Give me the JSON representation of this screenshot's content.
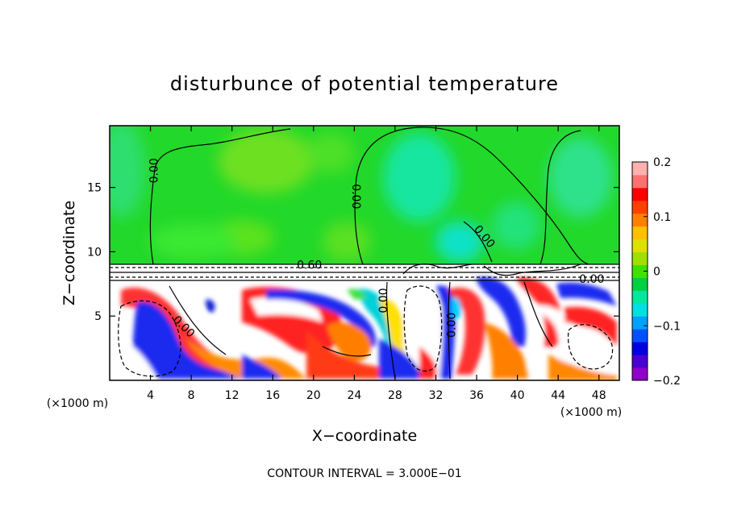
{
  "chart_data": {
    "type": "heatmap",
    "title": "disturbunce of potential temperature",
    "xlabel": "X−coordinate",
    "ylabel": "Z−coordinate",
    "x_unit": "(×1000 m)",
    "x_unit_right": "(×1000 m)",
    "xlim": [
      0,
      50
    ],
    "ylim": [
      0,
      19.8
    ],
    "x_ticks": [
      4,
      8,
      12,
      16,
      20,
      24,
      28,
      32,
      36,
      40,
      44,
      48
    ],
    "x_tick_labels": [
      "4",
      "8",
      "12",
      "16",
      "20",
      "24",
      "28",
      "32",
      "36",
      "40",
      "44",
      "48"
    ],
    "y_ticks": [
      5,
      10,
      15
    ],
    "y_tick_labels": [
      "5",
      "10",
      "15"
    ],
    "colorbar": {
      "min": -0.2,
      "max": 0.2,
      "ticks": [
        0.2,
        0.1,
        0,
        -0.1,
        -0.2
      ],
      "tick_labels": [
        "0.2",
        "0.1",
        "0",
        "−0.1",
        "−0.2"
      ],
      "colors": [
        "#8f00c8",
        "#4a00d0",
        "#0000e0",
        "#0050ff",
        "#00a0ff",
        "#00e0e0",
        "#00e8a0",
        "#00d040",
        "#40e000",
        "#a0e000",
        "#e0e000",
        "#ffc000",
        "#ff8000",
        "#ff4000",
        "#ff0000",
        "#ff7070",
        "#ffb0b0"
      ]
    },
    "contour_labels": [
      {
        "text": "0.00",
        "x": 4.3,
        "z": 16.3,
        "rotate": -90
      },
      {
        "text": "0.00",
        "x": 24.2,
        "z": 14.3,
        "rotate": 90
      },
      {
        "text": "0.00",
        "x": 36.8,
        "z": 11.2,
        "rotate": 50
      },
      {
        "text": "0.60",
        "x": 19.6,
        "z": 9.0,
        "rotate": 0
      },
      {
        "text": "0.00",
        "x": 47.3,
        "z": 7.9,
        "rotate": 0
      },
      {
        "text": "0.00",
        "x": 7.3,
        "z": 4.2,
        "rotate": 45
      },
      {
        "text": "0.00",
        "x": 26.8,
        "z": 6.2,
        "rotate": -90
      },
      {
        "text": "0.00",
        "x": 33.5,
        "z": 4.3,
        "rotate": -90
      }
    ],
    "contour_interval": "CONTOUR INTERVAL =   3.000E−01"
  }
}
